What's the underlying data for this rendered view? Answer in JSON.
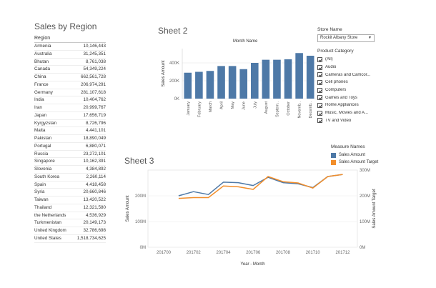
{
  "region_table": {
    "title": "Sales by Region",
    "header": "Region",
    "rows": [
      {
        "region": "Armenia",
        "value": "10,146,443"
      },
      {
        "region": "Australia",
        "value": "31,245,351"
      },
      {
        "region": "Bhutan",
        "value": "8,761,038"
      },
      {
        "region": "Canada",
        "value": "54,349,224"
      },
      {
        "region": "China",
        "value": "662,561,728"
      },
      {
        "region": "France",
        "value": "206,974,291"
      },
      {
        "region": "Germany",
        "value": "281,107,618"
      },
      {
        "region": "India",
        "value": "10,404,762"
      },
      {
        "region": "Iran",
        "value": "20,999,767"
      },
      {
        "region": "Japan",
        "value": "17,656,719"
      },
      {
        "region": "Kyrgyzstan",
        "value": "8,726,796"
      },
      {
        "region": "Malta",
        "value": "4,441,101"
      },
      {
        "region": "Pakistan",
        "value": "18,890,049"
      },
      {
        "region": "Portugal",
        "value": "6,880,071"
      },
      {
        "region": "Russia",
        "value": "23,272,101"
      },
      {
        "region": "Singapore",
        "value": "10,162,391"
      },
      {
        "region": "Slovenia",
        "value": "4,384,892"
      },
      {
        "region": "South Korea",
        "value": "2,260,114"
      },
      {
        "region": "Spain",
        "value": "4,418,458"
      },
      {
        "region": "Syria",
        "value": "20,660,846"
      },
      {
        "region": "Taiwan",
        "value": "13,420,522"
      },
      {
        "region": "Thailand",
        "value": "12,321,580"
      },
      {
        "region": "the Netherlands",
        "value": "4,536,929"
      },
      {
        "region": "Turkmenistan",
        "value": "20,149,173"
      },
      {
        "region": "United Kingdom",
        "value": "32,786,698"
      },
      {
        "region": "United States",
        "value": "1,518,734,625"
      }
    ]
  },
  "sheet2": {
    "title": "Sheet 2",
    "subtitle": "Month Name"
  },
  "sheet3": {
    "title": "Sheet 3"
  },
  "store_filter": {
    "title": "Store Name",
    "selected": "Rockit Albany Store"
  },
  "category_filter": {
    "title": "Product Category",
    "items": [
      {
        "label": "(All)",
        "checked": true
      },
      {
        "label": "Audio",
        "checked": true
      },
      {
        "label": "Cameras and Camcor...",
        "checked": true
      },
      {
        "label": "Cell phones",
        "checked": true
      },
      {
        "label": "Computers",
        "checked": true
      },
      {
        "label": "Games and Toys",
        "checked": true
      },
      {
        "label": "Home Appliances",
        "checked": true
      },
      {
        "label": "Music, Movies and A...",
        "checked": true
      },
      {
        "label": "TV and Video",
        "checked": true
      }
    ]
  },
  "legend": {
    "title": "Measure Names",
    "items": [
      {
        "label": "Sales Amount",
        "color": "#4e79a7"
      },
      {
        "label": "Sales Amount Target",
        "color": "#f28e2b"
      }
    ]
  },
  "chart_data": [
    {
      "type": "bar",
      "title": "Sheet 2",
      "xlabel": "Month Name",
      "ylabel": "Sales Amount",
      "categories": [
        "January",
        "February",
        "March",
        "April",
        "May",
        "June",
        "July",
        "August",
        "Septem..",
        "October",
        "Novemb..",
        "Decemb.."
      ],
      "values": [
        290,
        300,
        310,
        365,
        365,
        330,
        400,
        435,
        435,
        440,
        510,
        480
      ],
      "yticks": [
        "0K",
        "200K",
        "400K"
      ],
      "ylim": [
        0,
        560
      ],
      "color": "#4e79a7",
      "grid": true
    },
    {
      "type": "line",
      "title": "Sheet 3",
      "xlabel": "Year - Month",
      "ylabel": "Sales Amount",
      "ylabel_right": "Sales Amount Target",
      "x": [
        "201701",
        "201702",
        "201703",
        "201704",
        "201705",
        "201706",
        "201707",
        "201708",
        "201709",
        "201710",
        "201711",
        "201712"
      ],
      "xticks": [
        "201700",
        "201702",
        "201704",
        "201706",
        "201708",
        "201710",
        "201712"
      ],
      "yticks_left": [
        "0M",
        "100M",
        "200M"
      ],
      "yticks_right": [
        "0M",
        "100M",
        "200M",
        "300M"
      ],
      "ylim": [
        0,
        300
      ],
      "series": [
        {
          "name": "Sales Amount",
          "color": "#4e79a7",
          "values": [
            200,
            216,
            205,
            253,
            251,
            240,
            272,
            251,
            247,
            232,
            275,
            283
          ]
        },
        {
          "name": "Sales Amount Target",
          "color": "#f28e2b",
          "values": [
            190,
            193,
            193,
            238,
            235,
            225,
            275,
            255,
            250,
            230,
            275,
            283
          ]
        }
      ],
      "grid": true
    }
  ]
}
